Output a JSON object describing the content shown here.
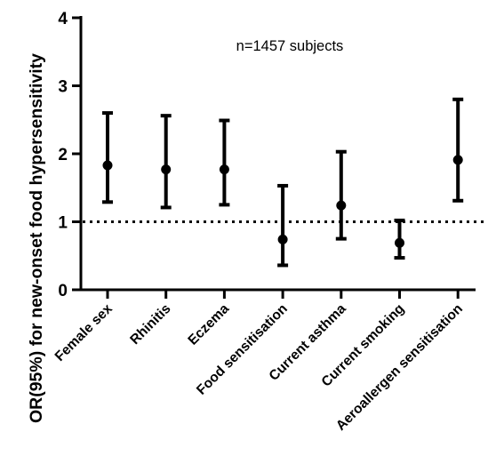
{
  "chart_data": {
    "type": "scatter",
    "subtype": "error-bar",
    "title": "",
    "annotation": "n=1457 subjects",
    "ylabel": "OR(95%) for new-onset food hypersensitivity",
    "xlabel": "",
    "ylim": [
      0,
      4
    ],
    "yticks": [
      "0",
      "1",
      "2",
      "3",
      "4"
    ],
    "reference_line": {
      "y": 1,
      "style": "dotted"
    },
    "grid": false,
    "legend": "none",
    "categories": [
      "Female sex",
      "Rhinitis",
      "Eczema",
      "Food sensitisation",
      "Current asthma",
      "Current smoking",
      "Aeroallergen sensitisation"
    ],
    "series": [
      {
        "values": [
          1.83,
          1.77,
          1.77,
          0.74,
          1.24,
          0.69,
          1.91
        ],
        "lower": [
          1.29,
          1.21,
          1.25,
          0.36,
          0.75,
          0.47,
          1.31
        ],
        "upper": [
          2.6,
          2.56,
          2.49,
          1.53,
          2.03,
          1.02,
          2.8
        ]
      }
    ],
    "colors": {
      "marks": "#000000"
    }
  }
}
